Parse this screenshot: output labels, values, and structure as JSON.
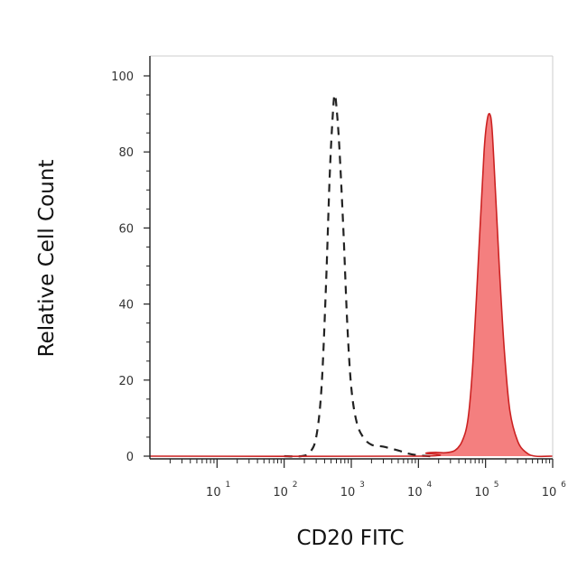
{
  "chart_data": {
    "type": "area",
    "xlabel": "CD20 FITC",
    "ylabel": "Relative Cell Count",
    "x_scale": "log",
    "xlim": [
      1,
      1000000
    ],
    "ylim": [
      0,
      100
    ],
    "x_ticks": [
      {
        "base": "10",
        "exp": "1",
        "value": 10
      },
      {
        "base": "10",
        "exp": "2",
        "value": 100
      },
      {
        "base": "10",
        "exp": "3",
        "value": 1000
      },
      {
        "base": "10",
        "exp": "4",
        "value": 10000
      },
      {
        "base": "10",
        "exp": "5",
        "value": 100000
      },
      {
        "base": "10",
        "exp": "6",
        "value": 1000000
      }
    ],
    "y_ticks": [
      0,
      20,
      40,
      60,
      80,
      100
    ],
    "grid": false,
    "series": [
      {
        "style": "dashed-outline",
        "color": "#222222",
        "points": [
          [
            100,
            0
          ],
          [
            180,
            0
          ],
          [
            240,
            1
          ],
          [
            300,
            5
          ],
          [
            360,
            18
          ],
          [
            420,
            45
          ],
          [
            480,
            75
          ],
          [
            540,
            92
          ],
          [
            570,
            95
          ],
          [
            600,
            92
          ],
          [
            660,
            82
          ],
          [
            760,
            60
          ],
          [
            870,
            35
          ],
          [
            1000,
            18
          ],
          [
            1200,
            9
          ],
          [
            1500,
            5
          ],
          [
            2000,
            3
          ],
          [
            3000,
            2.5
          ],
          [
            5000,
            1.5
          ],
          [
            7000,
            0.7
          ],
          [
            10000,
            0.2
          ],
          [
            15000,
            0
          ]
        ]
      },
      {
        "style": "filled",
        "color": "#cc2222",
        "fill": "#f47f7f",
        "points": [
          [
            1,
            0
          ],
          [
            10000,
            0
          ],
          [
            13000,
            0.8
          ],
          [
            18000,
            1
          ],
          [
            25000,
            0.9
          ],
          [
            35000,
            1.5
          ],
          [
            45000,
            4
          ],
          [
            55000,
            10
          ],
          [
            65000,
            25
          ],
          [
            80000,
            55
          ],
          [
            95000,
            80
          ],
          [
            105000,
            88
          ],
          [
            115000,
            90
          ],
          [
            125000,
            86
          ],
          [
            140000,
            70
          ],
          [
            160000,
            50
          ],
          [
            190000,
            28
          ],
          [
            230000,
            12
          ],
          [
            300000,
            4
          ],
          [
            400000,
            1
          ],
          [
            550000,
            0
          ],
          [
            1000000,
            0
          ]
        ]
      }
    ]
  }
}
